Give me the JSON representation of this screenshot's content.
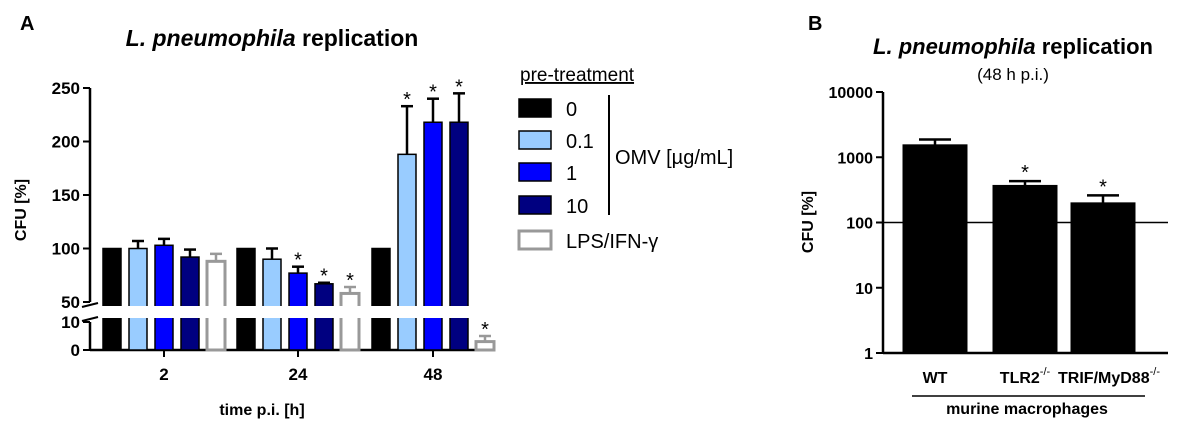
{
  "panel_labels": [
    "A",
    "B"
  ],
  "chart_data": [
    {
      "type": "bar",
      "title": "L. pneumophila replication",
      "title_italic_part": "L. pneumophila",
      "title_rest": " replication",
      "xlabel": "time p.i. [h]",
      "ylabel": "CFU [%]",
      "categories": [
        "2",
        "24",
        "48"
      ],
      "y_axis": "broken",
      "ylim_lower": [
        0,
        10
      ],
      "ylim_upper": [
        50,
        250
      ],
      "yticks_lower": [
        "0",
        "10"
      ],
      "yticks_upper": [
        "50",
        "100",
        "150",
        "200",
        "250"
      ],
      "legend": {
        "title": "pre-treatment",
        "group_label": "OMV [µg/mL]",
        "placement": "right",
        "entries": [
          "0",
          "0.1",
          "1",
          "10",
          "LPS/IFN-γ"
        ]
      },
      "series": [
        {
          "name": "0",
          "color": "#000000",
          "style": "filled",
          "values": [
            100,
            100,
            100
          ],
          "errors": [
            0,
            0,
            0
          ],
          "significant": [
            false,
            false,
            false
          ]
        },
        {
          "name": "0.1",
          "color": "#99ccff",
          "style": "filled",
          "values": [
            100,
            90,
            188
          ],
          "errors": [
            7,
            10,
            45
          ],
          "significant": [
            false,
            false,
            true
          ]
        },
        {
          "name": "1",
          "color": "#0000ff",
          "style": "filled",
          "values": [
            103,
            77,
            218
          ],
          "errors": [
            6,
            6,
            22
          ],
          "significant": [
            false,
            true,
            true
          ]
        },
        {
          "name": "10",
          "color": "#000080",
          "style": "filled",
          "values": [
            92,
            67,
            218
          ],
          "errors": [
            7,
            1,
            27
          ],
          "significant": [
            false,
            true,
            true
          ]
        },
        {
          "name": "LPS/IFN-γ",
          "color": "#999999",
          "style": "outline",
          "values": [
            88,
            58,
            3
          ],
          "errors": [
            7,
            6,
            2
          ],
          "significant": [
            false,
            true,
            true
          ]
        }
      ],
      "annotation": "*"
    },
    {
      "type": "bar",
      "title": "L. pneumophila replication",
      "title_italic_part": "L. pneumophila",
      "title_rest": " replication",
      "subtitle": "(48 h p.i.)",
      "xlabel": "murine macrophages",
      "ylabel": "CFU [%]",
      "scale": "log",
      "ylim": [
        1,
        10000
      ],
      "yticks": [
        "1",
        "10",
        "100",
        "1000",
        "10000"
      ],
      "reference_line": 100,
      "categories": [
        {
          "base": "WT",
          "sup": ""
        },
        {
          "base": "TLR2",
          "sup": "-/-"
        },
        {
          "base": "TRIF/MyD88",
          "sup": "-/-"
        }
      ],
      "values": [
        1550,
        370,
        200
      ],
      "errors": [
        320,
        60,
        60
      ],
      "significant": [
        false,
        true,
        true
      ],
      "color": "#000000",
      "annotation": "*"
    }
  ]
}
